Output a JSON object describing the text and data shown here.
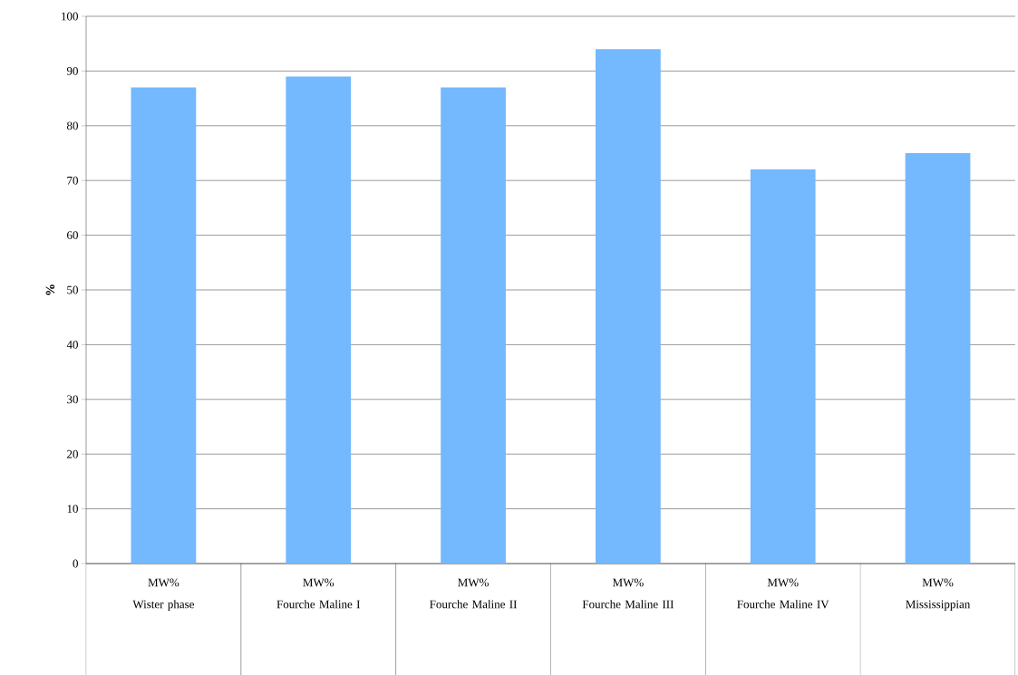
{
  "chart_data": {
    "type": "bar",
    "ylabel": "%",
    "categories": [
      "Wister phase",
      "Fourche Maline I",
      "Fourche Maline II",
      "Fourche Maline III",
      "Fourche Maline IV",
      "Mississippian"
    ],
    "series": [
      {
        "name": "MW%",
        "color": "#74b8fe",
        "values": [
          87,
          89,
          87,
          94,
          72,
          75
        ]
      }
    ],
    "ylim": [
      0,
      100
    ],
    "yticks": [
      0,
      10,
      20,
      30,
      40,
      50,
      60,
      70,
      80,
      90,
      100
    ],
    "grid": "y"
  }
}
